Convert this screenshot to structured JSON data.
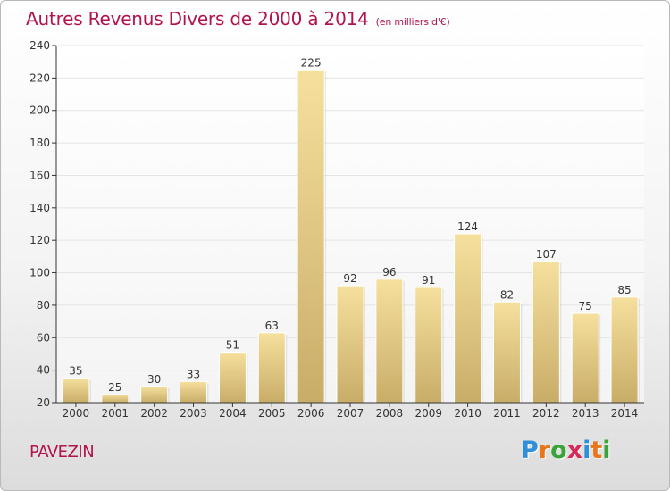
{
  "header": {
    "title": "Autres Revenus Divers de 2000 à 2014",
    "subtitle": "(en milliers d'€)"
  },
  "footer": {
    "place": "PAVEZIN",
    "logo_letters": [
      "P",
      "r",
      "o",
      "x",
      "i",
      "t",
      "i"
    ],
    "logo_colors": [
      "#2f8fd8",
      "#e8761b",
      "#3aa33a",
      "#d62a5a",
      "#2f8fd8",
      "#e8761b",
      "#3aa33a"
    ]
  },
  "colors": {
    "bar_light": "#f6e09d",
    "bar_dark": "#c8ad68",
    "axis": "#333333",
    "grid": "#e4e4e4",
    "title": "#b2134d"
  },
  "chart_data": {
    "type": "bar",
    "title": "Autres Revenus Divers de 2000 à 2014",
    "subtitle": "(en milliers d'€)",
    "xlabel": "",
    "ylabel": "",
    "ylim": [
      20,
      240
    ],
    "yticks": [
      20,
      40,
      60,
      80,
      100,
      120,
      140,
      160,
      180,
      200,
      220,
      240
    ],
    "grid": true,
    "categories": [
      "2000",
      "2001",
      "2002",
      "2003",
      "2004",
      "2005",
      "2006",
      "2007",
      "2008",
      "2009",
      "2010",
      "2011",
      "2012",
      "2013",
      "2014"
    ],
    "values": [
      35,
      25,
      30,
      33,
      51,
      63,
      225,
      92,
      96,
      91,
      124,
      82,
      107,
      75,
      85
    ]
  }
}
